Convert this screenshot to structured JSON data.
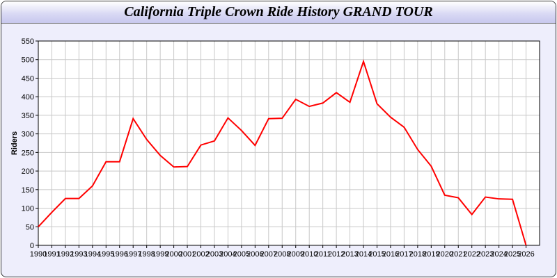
{
  "chart_data": {
    "type": "line",
    "title": "California Triple Crown Ride History GRAND TOUR",
    "xlabel": "",
    "ylabel": "Riders",
    "xlim": [
      1990,
      2027
    ],
    "ylim": [
      0,
      550
    ],
    "yticks": [
      0,
      50,
      100,
      150,
      200,
      250,
      300,
      350,
      400,
      450,
      500,
      550
    ],
    "grid": true,
    "line_color": "#ff0000",
    "x": [
      1990,
      1991,
      1992,
      1993,
      1994,
      1995,
      1996,
      1997,
      1998,
      1999,
      2000,
      2001,
      2002,
      2003,
      2004,
      2005,
      2006,
      2007,
      2008,
      2009,
      2010,
      2011,
      2012,
      2013,
      2014,
      2015,
      2016,
      2017,
      2018,
      2019,
      2020,
      2021,
      2022,
      2023,
      2024,
      2025,
      2026
    ],
    "values": [
      50,
      89,
      126,
      126,
      160,
      225,
      225,
      341,
      285,
      242,
      211,
      212,
      270,
      281,
      343,
      309,
      269,
      341,
      342,
      393,
      374,
      383,
      411,
      385,
      495,
      381,
      345,
      318,
      258,
      213,
      135,
      128,
      83,
      130,
      125,
      124,
      0
    ]
  }
}
